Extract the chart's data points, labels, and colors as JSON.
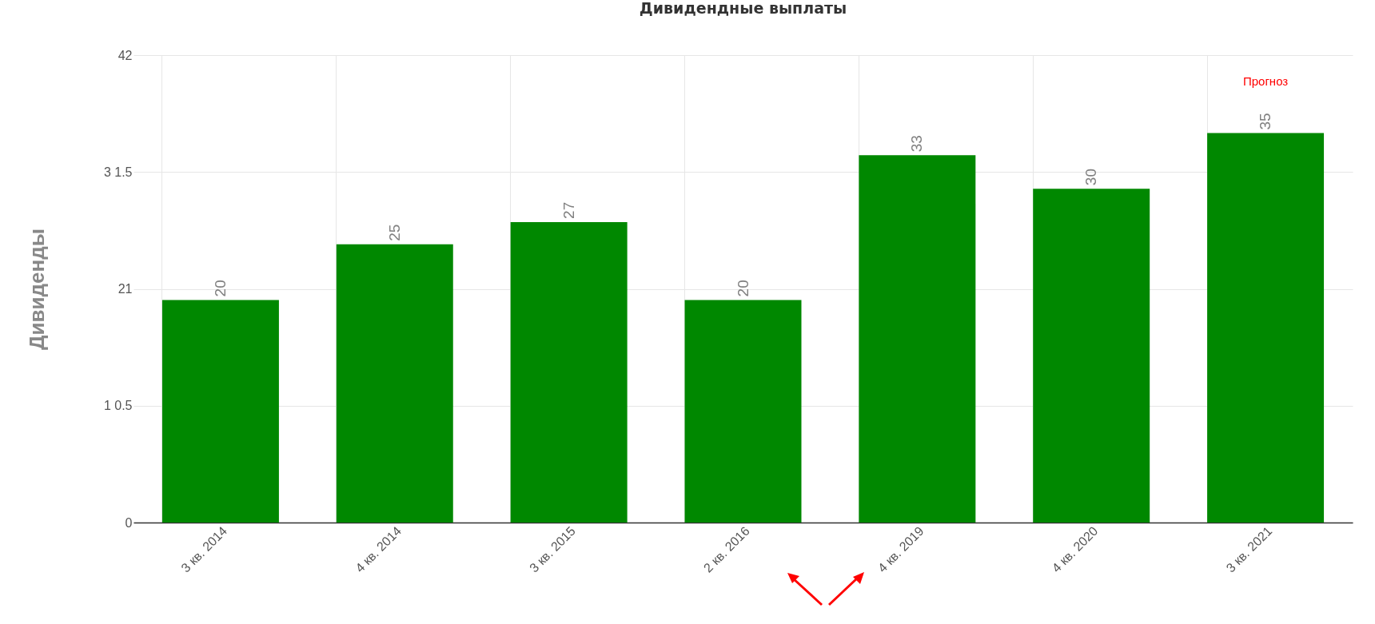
{
  "chart_data": {
    "type": "bar",
    "title": "Дивидендные выплаты",
    "ylabel": "Дивиденды",
    "categories": [
      "3 кв. 2014",
      "4 кв. 2014",
      "3 кв. 2015",
      "2 кв. 2016",
      "4 кв. 2019",
      "4 кв. 2020",
      "3 кв. 2021"
    ],
    "values": [
      20,
      25,
      27,
      20,
      33,
      30,
      35
    ],
    "color": "#008800",
    "ylim": [
      0,
      42
    ],
    "yticks": [
      0,
      {
        "value": 10.5,
        "label": "1 0.5"
      },
      21,
      {
        "value": 31.5,
        "label": "3 1.5"
      },
      42
    ],
    "grid": true,
    "data_labels": true,
    "annotations": [
      "Прогноз"
    ]
  }
}
